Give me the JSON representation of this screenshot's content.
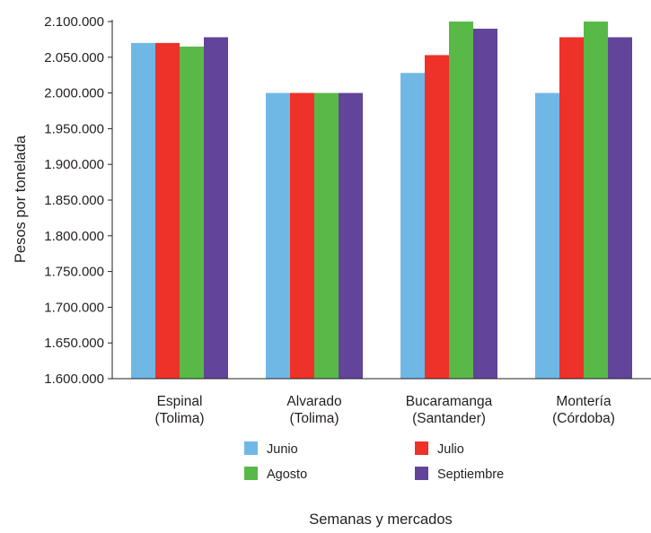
{
  "chart_data": {
    "type": "bar",
    "title": "",
    "xlabel": "Semanas y mercados",
    "ylabel": "Pesos por tonelada",
    "ylim": [
      1600000,
      2100000
    ],
    "yticks": [
      "1.600.000",
      "1.650.000",
      "1.700.000",
      "1.750.000",
      "1.800.000",
      "1.850.000",
      "1.900.000",
      "1.950.000",
      "2.000.000",
      "2.050.000",
      "2.100.000"
    ],
    "categories": [
      [
        "Espinal",
        "(Tolima)"
      ],
      [
        "Alvarado",
        "(Tolima)"
      ],
      [
        "Bucaramanga",
        "(Santander)"
      ],
      [
        "Montería",
        "(Córdoba)"
      ]
    ],
    "series": [
      {
        "name": "Junio",
        "color": "#6fb8e6",
        "values": [
          2070000,
          2000000,
          2028000,
          2000000
        ]
      },
      {
        "name": "Julio",
        "color": "#ee3129",
        "values": [
          2070000,
          2000000,
          2053000,
          2078000
        ]
      },
      {
        "name": "Agosto",
        "color": "#58b947",
        "values": [
          2065000,
          2000000,
          2100000,
          2100000
        ]
      },
      {
        "name": "Septiembre",
        "color": "#62449a",
        "values": [
          2078000,
          2000000,
          2090000,
          2078000
        ]
      }
    ],
    "grid": false,
    "legend_position": "bottom"
  }
}
